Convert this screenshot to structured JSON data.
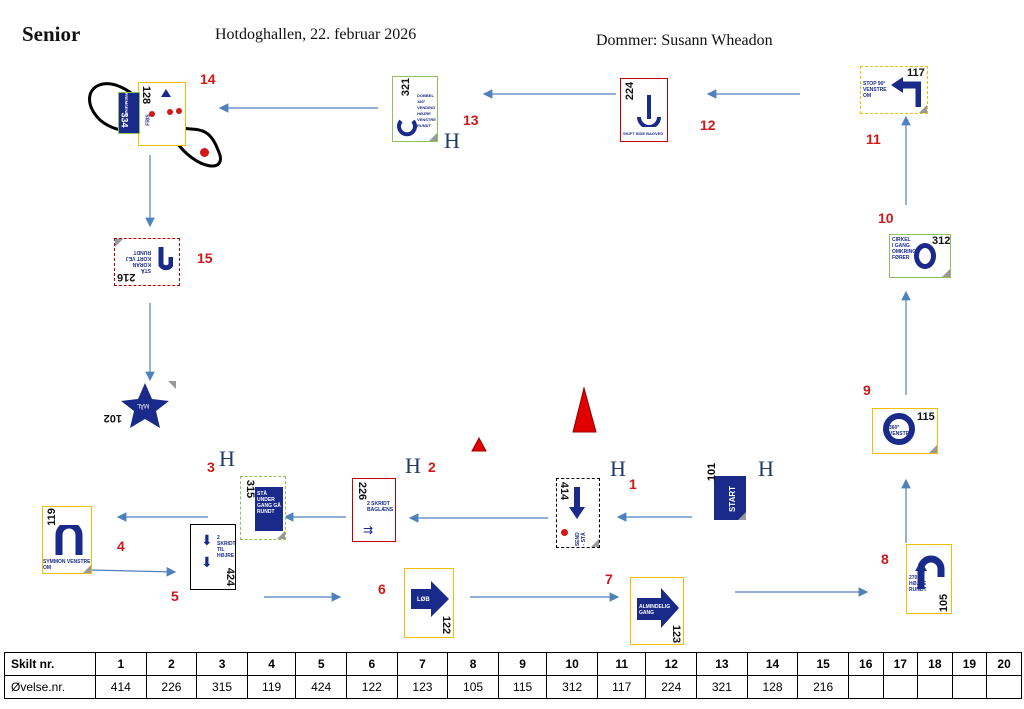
{
  "header": {
    "level": "Senior",
    "venue_date": "Hotdoghallen, 22. februar 2026",
    "judge": "Dommer: Susann Wheadon"
  },
  "signs": [
    {
      "id": "start",
      "number": "101",
      "text": "START"
    },
    {
      "id": "s1",
      "number": "414",
      "label": "1",
      "text": "STOP SEND FREM - STÅ"
    },
    {
      "id": "s2",
      "number": "226",
      "label": "2",
      "text": "2 SKRIDT BAGLÆNS"
    },
    {
      "id": "s3",
      "number": "315",
      "label": "3",
      "text": "STÅ UNDER GANG GÅ RUNDT"
    },
    {
      "id": "s4",
      "number": "119",
      "label": "4",
      "text": "SYMMON VENSTRE OM"
    },
    {
      "id": "s5",
      "number": "424",
      "label": "5",
      "text": "2 SKRIDT TIL HØJRE"
    },
    {
      "id": "s6",
      "number": "122",
      "label": "6",
      "text": "LØB"
    },
    {
      "id": "s7",
      "number": "123",
      "label": "7",
      "text": "ALMINDELIG GANG"
    },
    {
      "id": "s8",
      "number": "105",
      "label": "8",
      "text": "270° HØJRE RUNDT"
    },
    {
      "id": "s9",
      "number": "115",
      "label": "9",
      "text": "360° VENSTRE"
    },
    {
      "id": "s10",
      "number": "312",
      "label": "10",
      "text": "CIRKEL I GANG OMKRING FØRER"
    },
    {
      "id": "s11",
      "number": "117",
      "label": "11",
      "text": "STOP 90° VENSTRE OM"
    },
    {
      "id": "s12",
      "number": "224",
      "label": "12",
      "text": "SKIFT SIDE BAGVED"
    },
    {
      "id": "s13",
      "number": "321",
      "label": "13",
      "text": "DOBBEL 180° VENDING HØJRE VENSTRE RUNDT"
    },
    {
      "id": "s14",
      "number": "128",
      "label": "14",
      "text": "FRIS"
    },
    {
      "id": "s14b",
      "number": "334",
      "text": "FREMSEND"
    },
    {
      "id": "s15",
      "number": "216",
      "label": "15",
      "text": "STÅ KORAN KORT VEJ RUNDT"
    },
    {
      "id": "finish",
      "number": "102",
      "text": "MÅL"
    }
  ],
  "hmarks": [
    "H",
    "H",
    "H",
    "H",
    "H"
  ],
  "table": {
    "row1_label": "Skilt nr.",
    "row2_label": "Øvelse.nr.",
    "sign_numbers": [
      "1",
      "2",
      "3",
      "4",
      "5",
      "6",
      "7",
      "8",
      "9",
      "10",
      "11",
      "12",
      "13",
      "14",
      "15",
      "16",
      "17",
      "18",
      "19",
      "20"
    ],
    "exercise_numbers": [
      "414",
      "226",
      "315",
      "119",
      "424",
      "122",
      "123",
      "105",
      "115",
      "312",
      "117",
      "224",
      "321",
      "128",
      "216",
      "",
      "",
      "",
      "",
      ""
    ]
  },
  "colors": {
    "accent": "#1a2a8a",
    "label_red": "#d01818",
    "arrow": "#4f81bd",
    "yellow": "#f0c000",
    "green": "#8cc060",
    "red": "#c00000",
    "black": "#000000"
  }
}
